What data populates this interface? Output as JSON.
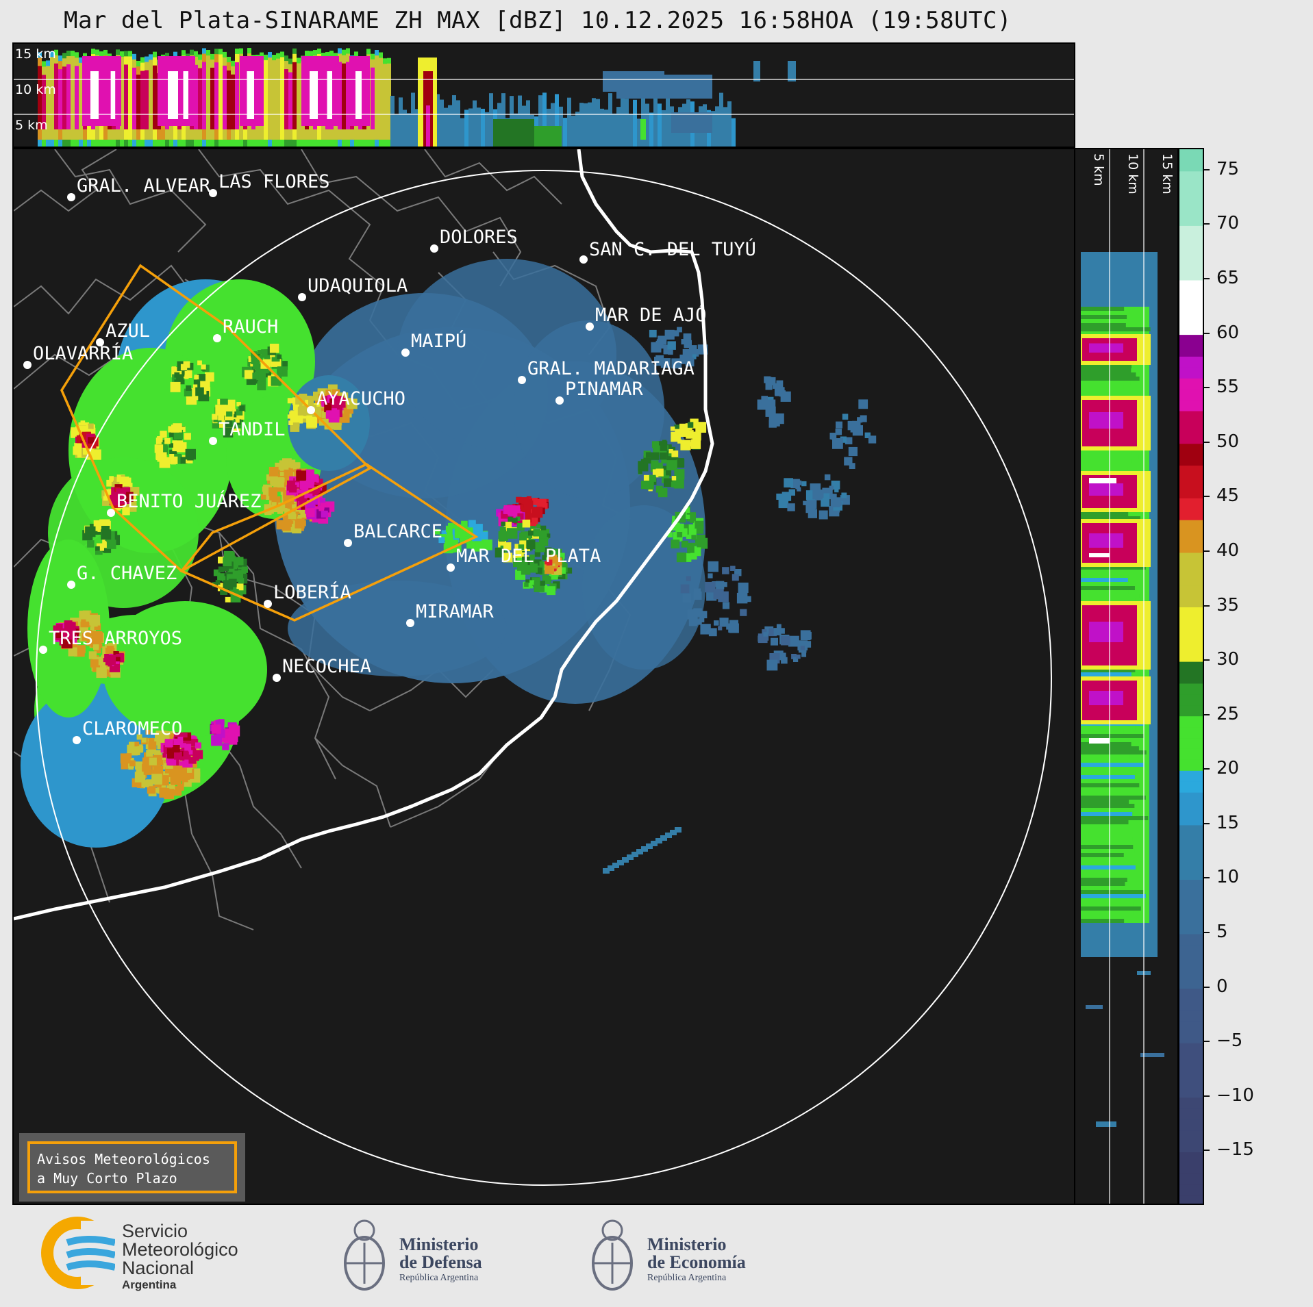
{
  "title": "Mar del Plata-SINARAME ZH MAX [dBZ] 10.12.2025 16:58HOA (19:58UTC)",
  "height_labels_top": [
    "15 km",
    "10 km",
    "5 km"
  ],
  "height_labels_side": [
    "5 km",
    "10 km",
    "15 km"
  ],
  "cities": [
    {
      "name": "GRAL. ALVEAR"
    },
    {
      "name": "LAS FLORES"
    },
    {
      "name": "DOLORES"
    },
    {
      "name": "SAN C. DEL TUYÚ"
    },
    {
      "name": "UDAQUIOLA"
    },
    {
      "name": "MAR DE AJÓ"
    },
    {
      "name": "AZUL"
    },
    {
      "name": "RAUCH"
    },
    {
      "name": "MAIPÚ"
    },
    {
      "name": "OLAVARRÍA"
    },
    {
      "name": "GRAL. MADARIAGA"
    },
    {
      "name": "PINAMAR"
    },
    {
      "name": "AYACUCHO"
    },
    {
      "name": "TANDIL"
    },
    {
      "name": "BENITO JUÁREZ"
    },
    {
      "name": "BALCARCE"
    },
    {
      "name": "MAR DEL PLATA"
    },
    {
      "name": "G. CHAVEZ"
    },
    {
      "name": "LOBERÍA"
    },
    {
      "name": "MIRAMAR"
    },
    {
      "name": "TRES ARROYOS"
    },
    {
      "name": "NECOCHEA"
    },
    {
      "name": "CLAROMECO"
    }
  ],
  "colorbar": {
    "unit": "dBZ",
    "ticks": [
      "75",
      "70",
      "65",
      "60",
      "55",
      "50",
      "45",
      "40",
      "35",
      "30",
      "25",
      "20",
      "15",
      "10",
      "5",
      "0",
      "−5",
      "−10",
      "−15"
    ],
    "min": -20,
    "max": 77,
    "colors": {
      "-20": "#3a3f6b",
      "-15": "#3d4773",
      "-10": "#3f4f7d",
      "-5": "#3f5987",
      "0": "#3d6491",
      "5": "#3a709c",
      "10": "#347ea8",
      "15": "#2e96cc",
      "18": "#2ba9dd",
      "20": "#45e12f",
      "25": "#2f9e2b",
      "28": "#237524",
      "30": "#eeee2e",
      "35": "#c7c436",
      "40": "#d99420",
      "43": "#e21f2e",
      "45": "#c80f1e",
      "48": "#a00010",
      "50": "#c8005a",
      "53": "#e011b0",
      "56": "#c011c8",
      "58": "#8a0090",
      "60": "#ffffff",
      "65": "#c9f0dd",
      "70": "#9ae5c7",
      "75": "#7ad9b5"
    }
  },
  "warning_box": {
    "line1": "Avisos Meteorológicos",
    "line2": "a Muy Corto Plazo"
  },
  "logos": {
    "smn": {
      "line1": "Servicio",
      "line2": "Meteorológico",
      "line3": "Nacional",
      "line4": "Argentina"
    },
    "defensa": {
      "line1": "Ministerio",
      "line2": "de Defensa",
      "line3": "República Argentina"
    },
    "economia": {
      "line1": "Ministerio",
      "line2": "de Economía",
      "line3": "República Argentina"
    }
  }
}
